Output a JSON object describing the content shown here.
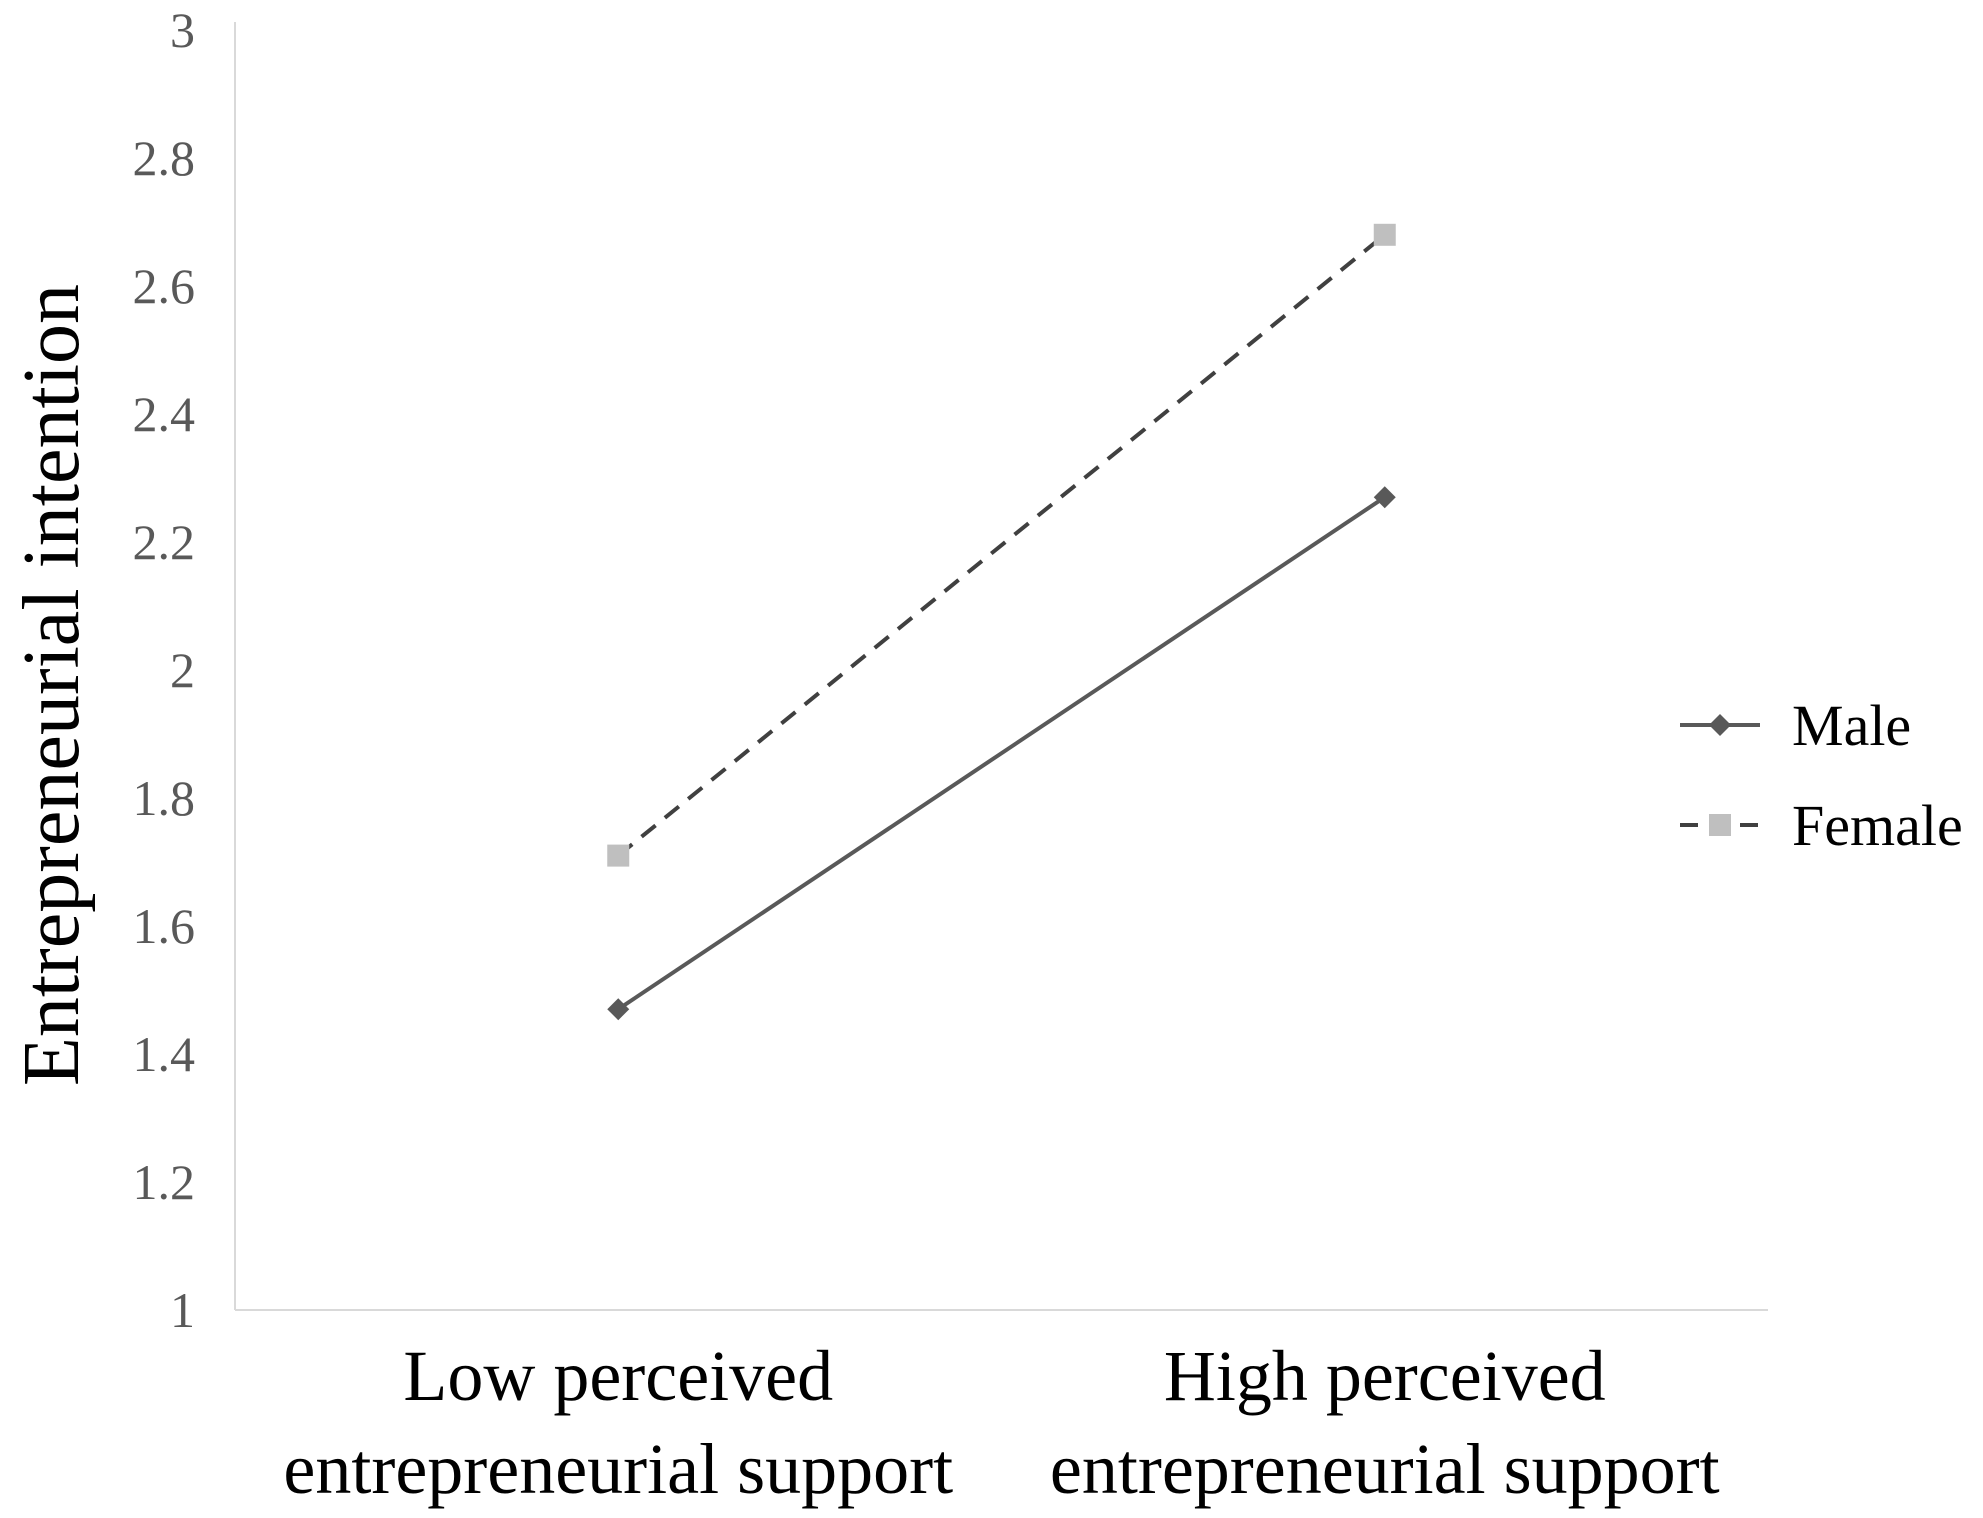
{
  "chart_data": {
    "type": "line",
    "title": "",
    "ylabel": "Entrepreneurial intention",
    "xlabel": "",
    "ylim": [
      1,
      3
    ],
    "y_ticks": [
      "1",
      "1.2",
      "1.4",
      "1.6",
      "1.8",
      "2",
      "2.2",
      "2.4",
      "2.6",
      "2.8",
      "3"
    ],
    "categories": [
      [
        "Low perceived",
        "entrepreneurial support"
      ],
      [
        "High perceived",
        "entrepreneurial support"
      ]
    ],
    "series": [
      {
        "name": "Male",
        "values": [
          1.47,
          2.27
        ],
        "color": "#595959",
        "dash": "solid",
        "marker": "diamond"
      },
      {
        "name": "Female",
        "values": [
          1.71,
          2.68
        ],
        "color": "#bfbfbf",
        "line_color": "#404040",
        "dash": "dashed",
        "marker": "square"
      }
    ],
    "grid": false,
    "legend_position": "right"
  }
}
